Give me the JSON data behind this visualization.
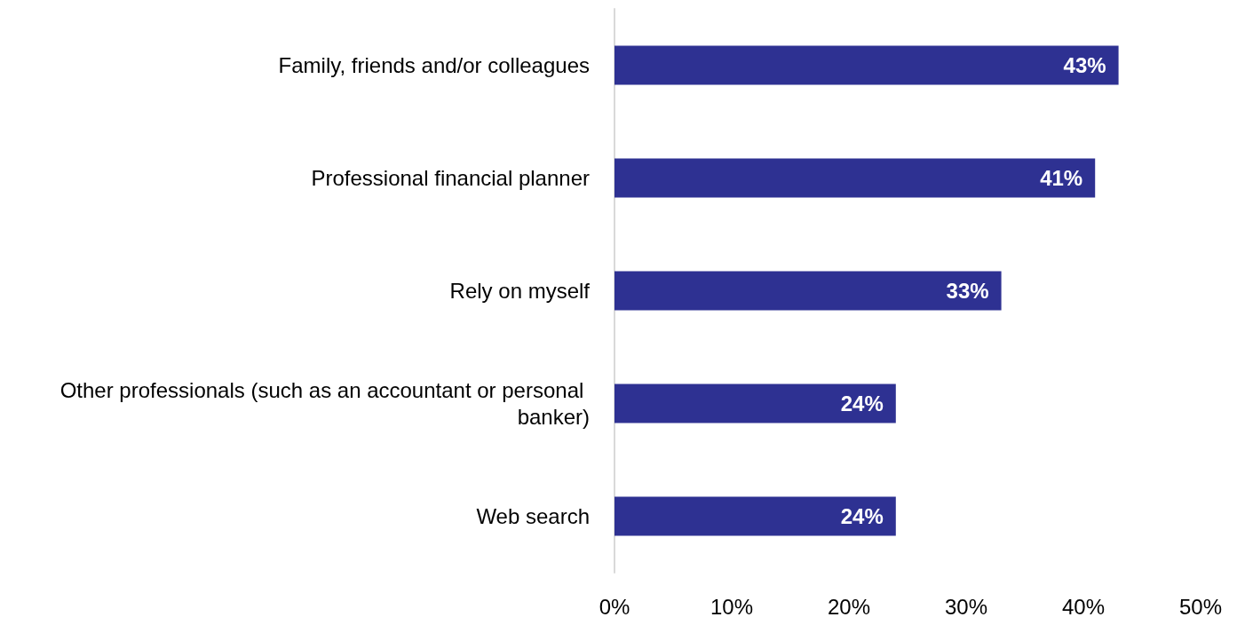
{
  "chart_data": {
    "type": "bar",
    "orientation": "horizontal",
    "categories": [
      "Family, friends and/or colleagues",
      "Professional financial planner",
      "Rely on myself",
      "Other professionals (such as an accountant or personal banker)",
      "Web search"
    ],
    "values": [
      43,
      41,
      33,
      24,
      24
    ],
    "value_labels": [
      "43%",
      "41%",
      "33%",
      "24%",
      "24%"
    ],
    "color": "#2e3192",
    "xlim": [
      0,
      50
    ],
    "xticks": [
      {
        "value": 0,
        "label": "0%"
      },
      {
        "value": 10,
        "label": "10%"
      },
      {
        "value": 20,
        "label": "20%"
      },
      {
        "value": 30,
        "label": "30%"
      },
      {
        "value": 40,
        "label": "40%"
      },
      {
        "value": 50,
        "label": "50%"
      }
    ],
    "grid": false
  }
}
